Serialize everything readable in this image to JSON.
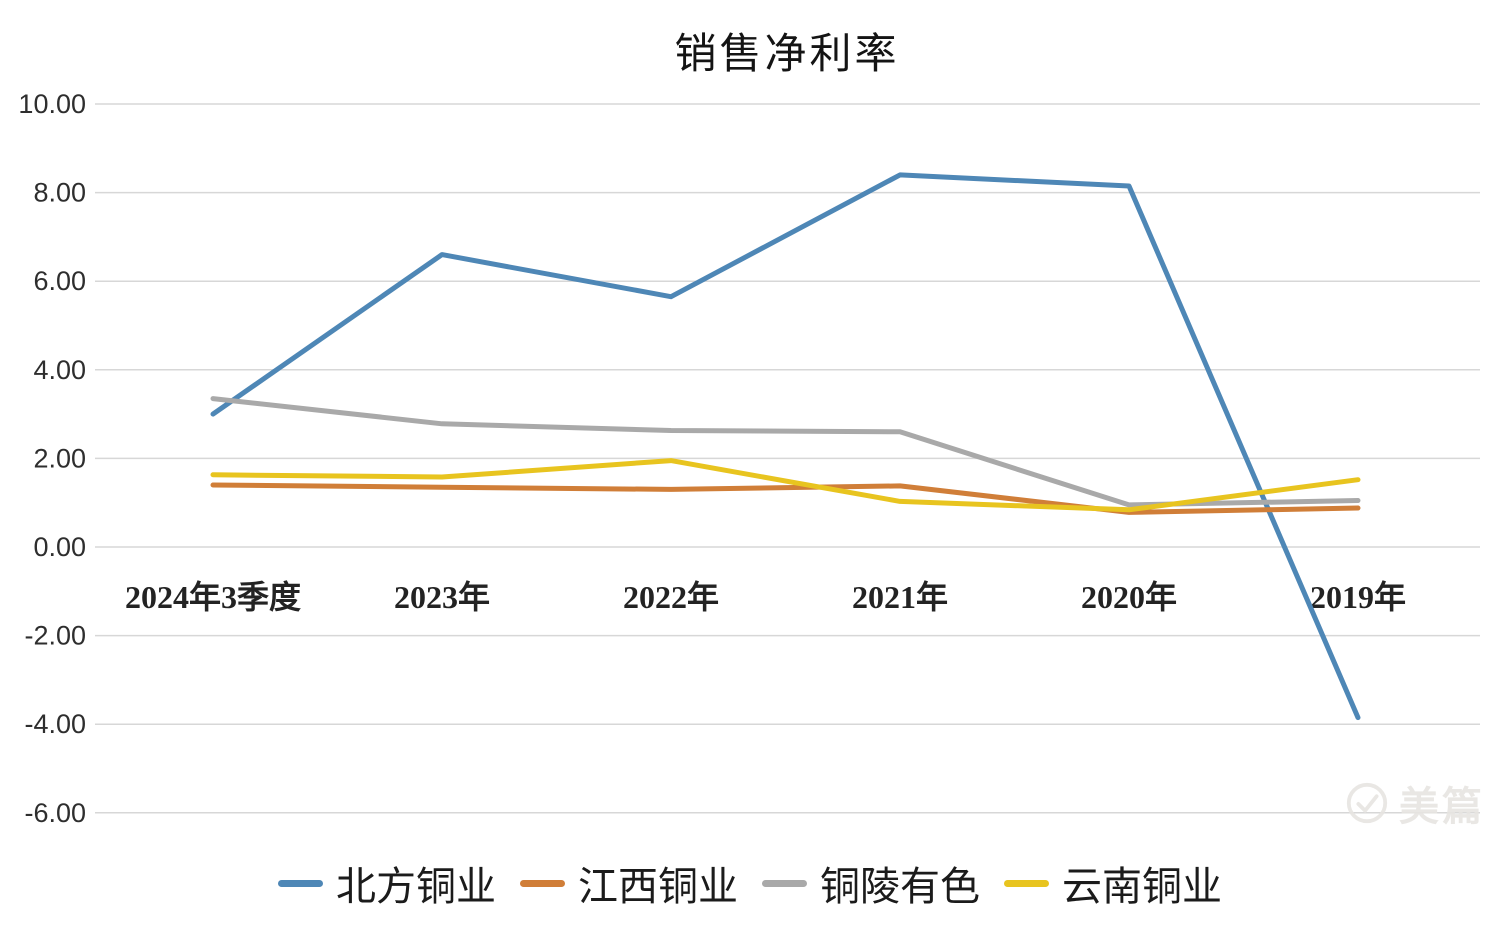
{
  "chart_data": {
    "type": "line",
    "title": "销售净利率",
    "categories": [
      "2024年3季度",
      "2023年",
      "2022年",
      "2021年",
      "2020年",
      "2019年"
    ],
    "series": [
      {
        "key": "beifang-tongye",
        "name": "北方铜业",
        "color": "#4E87B6",
        "values": [
          3.0,
          6.6,
          5.65,
          8.4,
          8.15,
          -3.85
        ]
      },
      {
        "key": "jiangxi-tongye",
        "name": "江西铜业",
        "color": "#D07E38",
        "values": [
          1.4,
          1.35,
          1.3,
          1.38,
          0.78,
          0.88
        ]
      },
      {
        "key": "tongling-youse",
        "name": "铜陵有色",
        "color": "#A9A9A9",
        "values": [
          3.35,
          2.78,
          2.63,
          2.6,
          0.95,
          1.05
        ]
      },
      {
        "key": "yunnan-tongye",
        "name": "云南铜业",
        "color": "#E8C41F",
        "values": [
          1.63,
          1.58,
          1.95,
          1.03,
          0.84,
          1.52
        ]
      }
    ],
    "y_ticks": [
      10,
      8,
      6,
      4,
      2,
      0,
      -2,
      -4,
      -6
    ],
    "y_tick_labels": [
      "10.00",
      "8.00",
      "6.00",
      "4.00",
      "2.00",
      "0.00",
      "-2.00",
      "-4.00",
      "-6.00"
    ],
    "ylim": [
      -6,
      10
    ],
    "xlabel": "",
    "ylabel": "",
    "grid": true,
    "legend_position": "bottom"
  },
  "watermark": {
    "text": "美篇"
  },
  "colors": {
    "background": "#FFFFFF",
    "gridline": "#D7D7D7",
    "axis_text": "#2E2E2E",
    "title_text": "#141414",
    "watermark_text": "#E7E5E2"
  }
}
